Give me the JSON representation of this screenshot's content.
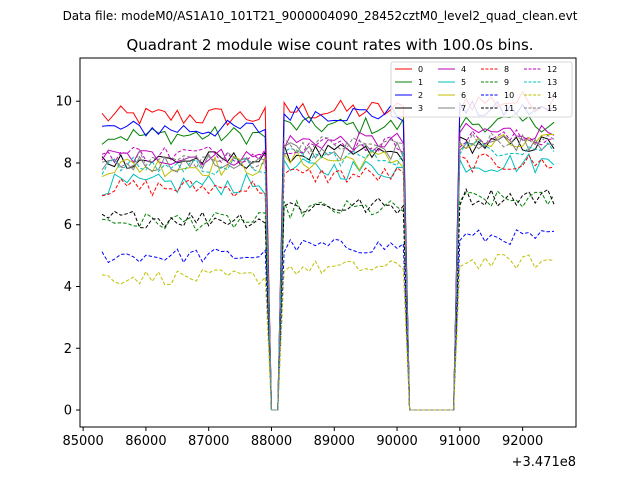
{
  "chart_data": {
    "type": "line",
    "suptitle": "Data file: modeM0/AS1A10_101T21_9000004090_28452cztM0_level2_quad_clean.evt",
    "title": "Quadrant 2 module wise count rates with 100.0s bins.",
    "xlabel": "",
    "ylabel": "",
    "x_offset_label": "+3.471e8",
    "xlim": [
      84950,
      92850
    ],
    "ylim": [
      -0.55,
      11.4
    ],
    "xticks": [
      85000,
      86000,
      87000,
      88000,
      89000,
      90000,
      91000,
      92000
    ],
    "xtick_labels": [
      "85000",
      "86000",
      "87000",
      "88000",
      "89000",
      "90000",
      "91000",
      "92000"
    ],
    "yticks": [
      0,
      2,
      4,
      6,
      8,
      10
    ],
    "ytick_labels": [
      "0",
      "2",
      "4",
      "6",
      "8",
      "10"
    ],
    "grid": false,
    "legend_placement": "top-right",
    "segments": [
      {
        "start": 85300,
        "end": 87900
      },
      {
        "start": 88000,
        "end": 88100
      },
      {
        "start": 88200,
        "end": 90100
      },
      {
        "start": 90200,
        "end": 90900
      },
      {
        "start": 91000,
        "end": 92500
      }
    ],
    "series": [
      {
        "name": "0",
        "color": "#ff0000",
        "dash": "solid",
        "levels": [
          9.5,
          0,
          9.7,
          0,
          10.0
        ],
        "noise": 0.35
      },
      {
        "name": "1",
        "color": "#008000",
        "dash": "solid",
        "levels": [
          8.9,
          0,
          9.2,
          0,
          9.3
        ],
        "noise": 0.3
      },
      {
        "name": "2",
        "color": "#0000ff",
        "dash": "solid",
        "levels": [
          9.1,
          0,
          9.6,
          0,
          9.7
        ],
        "noise": 0.3
      },
      {
        "name": "3",
        "color": "#000000",
        "dash": "solid",
        "levels": [
          8.1,
          0,
          8.3,
          0,
          8.6
        ],
        "noise": 0.3
      },
      {
        "name": "4",
        "color": "#bf00bf",
        "dash": "solid",
        "levels": [
          8.2,
          0,
          8.7,
          0,
          9.0
        ],
        "noise": 0.3
      },
      {
        "name": "5",
        "color": "#00bfbf",
        "dash": "solid",
        "levels": [
          7.3,
          0,
          7.8,
          0,
          8.0
        ],
        "noise": 0.35
      },
      {
        "name": "6",
        "color": "#bfbf00",
        "dash": "solid",
        "levels": [
          7.9,
          0,
          8.1,
          0,
          8.6
        ],
        "noise": 0.35
      },
      {
        "name": "7",
        "color": "#808080",
        "dash": "solid",
        "levels": [
          8.0,
          0,
          8.4,
          0,
          8.7
        ],
        "noise": 0.3
      },
      {
        "name": "8",
        "color": "#ff0000",
        "dash": "dashed",
        "levels": [
          7.2,
          0,
          7.6,
          0,
          8.0
        ],
        "noise": 0.3
      },
      {
        "name": "9",
        "color": "#008000",
        "dash": "dashed",
        "levels": [
          6.1,
          0,
          6.5,
          0,
          6.8
        ],
        "noise": 0.3
      },
      {
        "name": "10",
        "color": "#0000ff",
        "dash": "dashed",
        "levels": [
          5.0,
          0,
          5.3,
          0,
          5.6
        ],
        "noise": 0.25
      },
      {
        "name": "11",
        "color": "#000000",
        "dash": "dashed",
        "levels": [
          6.2,
          0,
          6.6,
          0,
          6.9
        ],
        "noise": 0.3
      },
      {
        "name": "12",
        "color": "#bf00bf",
        "dash": "dashed",
        "levels": [
          8.3,
          0,
          8.6,
          0,
          8.8
        ],
        "noise": 0.3
      },
      {
        "name": "13",
        "color": "#00bfbf",
        "dash": "dashed",
        "levels": [
          7.9,
          0,
          8.2,
          0,
          8.5
        ],
        "noise": 0.3
      },
      {
        "name": "14",
        "color": "#bfbf00",
        "dash": "dashed",
        "levels": [
          4.3,
          0,
          4.6,
          0,
          4.8
        ],
        "noise": 0.25
      },
      {
        "name": "15",
        "color": "#808080",
        "dash": "dashed",
        "levels": [
          8.1,
          0,
          8.6,
          0,
          8.7
        ],
        "noise": 0.3
      }
    ]
  }
}
